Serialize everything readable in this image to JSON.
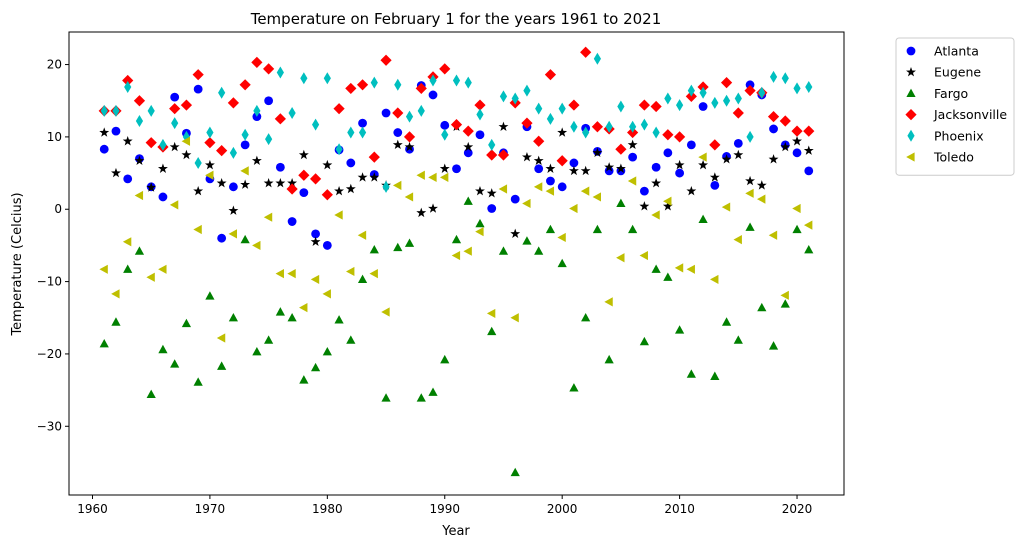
{
  "chart_data": {
    "type": "scatter",
    "title": "Temperature on February 1 for the years 1961 to 2021",
    "xlabel": "Year",
    "ylabel": "Temperature (Celcius)",
    "xlim": [
      1958,
      2024
    ],
    "ylim": [
      -39.5,
      24.5
    ],
    "xticks": [
      1960,
      1970,
      1980,
      1990,
      2000,
      2010,
      2020
    ],
    "yticks": [
      -30,
      -20,
      -10,
      0,
      10,
      20
    ],
    "grid": false,
    "legend_position": "outside-right",
    "x": [
      1961,
      1962,
      1963,
      1964,
      1965,
      1966,
      1967,
      1968,
      1969,
      1970,
      1971,
      1972,
      1973,
      1974,
      1975,
      1976,
      1977,
      1978,
      1979,
      1980,
      1981,
      1982,
      1983,
      1984,
      1985,
      1986,
      1987,
      1988,
      1989,
      1990,
      1991,
      1992,
      1993,
      1994,
      1995,
      1996,
      1997,
      1998,
      1999,
      2000,
      2001,
      2002,
      2003,
      2004,
      2005,
      2006,
      2007,
      2008,
      2009,
      2010,
      2011,
      2012,
      2013,
      2014,
      2015,
      2016,
      2017,
      2018,
      2019,
      2020,
      2021
    ],
    "series": [
      {
        "name": "Atlanta",
        "color": "#0000ff",
        "marker": "circle",
        "values": [
          8.3,
          10.8,
          4.2,
          7.0,
          3.1,
          1.7,
          15.5,
          10.5,
          16.6,
          4.2,
          -4.0,
          3.1,
          8.9,
          12.8,
          15.0,
          5.8,
          -1.7,
          2.3,
          -3.4,
          -5.0,
          8.2,
          6.4,
          11.9,
          4.8,
          13.3,
          10.6,
          8.3,
          17.1,
          15.8,
          11.6,
          5.6,
          7.8,
          10.3,
          0.1,
          7.8,
          1.4,
          11.4,
          5.6,
          3.9,
          3.1,
          6.4,
          11.2,
          8.0,
          5.3,
          5.3,
          7.2,
          2.5,
          5.8,
          7.8,
          5.0,
          8.9,
          14.2,
          3.3,
          7.3,
          9.1,
          17.2,
          15.8,
          11.1,
          8.9,
          7.8,
          5.3
        ]
      },
      {
        "name": "Eugene",
        "color": "#000000",
        "marker": "star",
        "values": [
          10.6,
          5.0,
          9.4,
          6.7,
          3.0,
          5.6,
          8.6,
          7.5,
          2.5,
          6.1,
          3.6,
          -0.2,
          3.4,
          6.7,
          3.6,
          3.6,
          3.6,
          7.5,
          -4.5,
          6.1,
          2.5,
          2.8,
          4.4,
          4.4,
          3.3,
          8.9,
          8.6,
          -0.5,
          0.1,
          5.6,
          11.4,
          8.6,
          2.5,
          2.2,
          11.4,
          -3.4,
          7.2,
          6.7,
          5.6,
          10.6,
          5.3,
          5.3,
          7.8,
          5.8,
          5.6,
          8.9,
          0.4,
          3.6,
          0.4,
          6.1,
          2.5,
          6.1,
          4.4,
          6.9,
          7.5,
          3.9,
          3.3,
          6.9,
          8.6,
          9.4,
          8.1
        ]
      },
      {
        "name": "Fargo",
        "color": "#008000",
        "marker": "triangle-up",
        "values": [
          -18.6,
          -15.6,
          -8.3,
          -5.8,
          -25.6,
          -19.4,
          -21.4,
          -15.8,
          -23.9,
          -12.0,
          -21.7,
          -15.0,
          -4.2,
          -19.7,
          -18.1,
          -14.2,
          -15.0,
          -23.6,
          -21.9,
          -19.7,
          -15.3,
          -18.1,
          -9.7,
          -5.6,
          -26.1,
          -5.3,
          -4.7,
          -26.1,
          -25.3,
          -20.8,
          -4.2,
          1.1,
          -2.0,
          -16.9,
          -5.8,
          -36.4,
          -4.4,
          -5.8,
          -2.8,
          -7.5,
          -24.7,
          -15.0,
          -2.8,
          -20.8,
          0.8,
          -2.8,
          -18.3,
          -8.3,
          -9.4,
          -16.7,
          -22.8,
          -1.4,
          -23.1,
          -15.6,
          -18.1,
          -2.5,
          -13.6,
          -18.9,
          -13.1,
          -2.8,
          -5.6
        ]
      },
      {
        "name": "Jacksonville",
        "color": "#ff0000",
        "marker": "diamond",
        "values": [
          13.6,
          13.6,
          17.8,
          15.0,
          9.2,
          8.6,
          13.9,
          14.4,
          18.6,
          9.2,
          8.1,
          14.7,
          17.2,
          20.3,
          19.4,
          12.5,
          2.8,
          4.7,
          4.2,
          2.0,
          13.9,
          16.7,
          17.2,
          7.2,
          20.6,
          13.3,
          10.0,
          16.7,
          18.3,
          19.4,
          11.7,
          10.8,
          14.4,
          7.5,
          7.5,
          14.7,
          11.9,
          9.4,
          18.6,
          6.7,
          14.4,
          21.7,
          11.4,
          11.1,
          8.3,
          10.6,
          14.4,
          14.2,
          10.3,
          10.0,
          15.6,
          16.9,
          8.9,
          17.5,
          13.3,
          16.4,
          16.1,
          12.8,
          12.2,
          10.8,
          10.8
        ]
      },
      {
        "name": "Phoenix",
        "color": "#00bfbf",
        "marker": "thin-diamond",
        "values": [
          13.6,
          13.6,
          16.9,
          12.2,
          13.6,
          8.9,
          11.9,
          10.0,
          6.4,
          10.6,
          16.1,
          7.8,
          10.3,
          13.6,
          9.7,
          18.9,
          13.3,
          18.1,
          11.7,
          18.1,
          8.3,
          10.6,
          10.6,
          17.5,
          3.1,
          17.2,
          12.8,
          13.6,
          17.8,
          10.3,
          17.8,
          17.5,
          13.1,
          8.9,
          15.6,
          15.3,
          16.4,
          13.9,
          12.5,
          13.9,
          11.4,
          10.6,
          20.8,
          11.4,
          14.2,
          11.4,
          11.7,
          10.6,
          15.3,
          14.4,
          16.4,
          16.1,
          14.7,
          15.0,
          15.3,
          10.0,
          16.1,
          18.3,
          18.1,
          16.7,
          16.9
        ]
      },
      {
        "name": "Toledo",
        "color": "#bfbf00",
        "marker": "triangle-left",
        "values": [
          -8.3,
          -11.7,
          -4.5,
          1.9,
          -9.4,
          -8.3,
          0.6,
          9.4,
          -2.8,
          4.7,
          -17.8,
          -3.4,
          5.3,
          -5.0,
          -1.1,
          -8.9,
          -8.9,
          -13.6,
          -9.7,
          -11.7,
          -0.8,
          -8.6,
          -3.6,
          -8.9,
          -14.2,
          3.3,
          1.7,
          4.7,
          4.4,
          4.4,
          -6.4,
          -5.8,
          -3.1,
          -14.4,
          2.8,
          -15.0,
          0.8,
          3.1,
          2.5,
          -3.9,
          0.1,
          2.5,
          1.7,
          -12.8,
          -6.7,
          3.9,
          -6.4,
          -0.8,
          1.1,
          -8.1,
          -8.3,
          7.2,
          -9.7,
          0.3,
          -4.2,
          2.2,
          1.4,
          -3.6,
          -11.9,
          0.1,
          -2.2
        ]
      }
    ]
  }
}
